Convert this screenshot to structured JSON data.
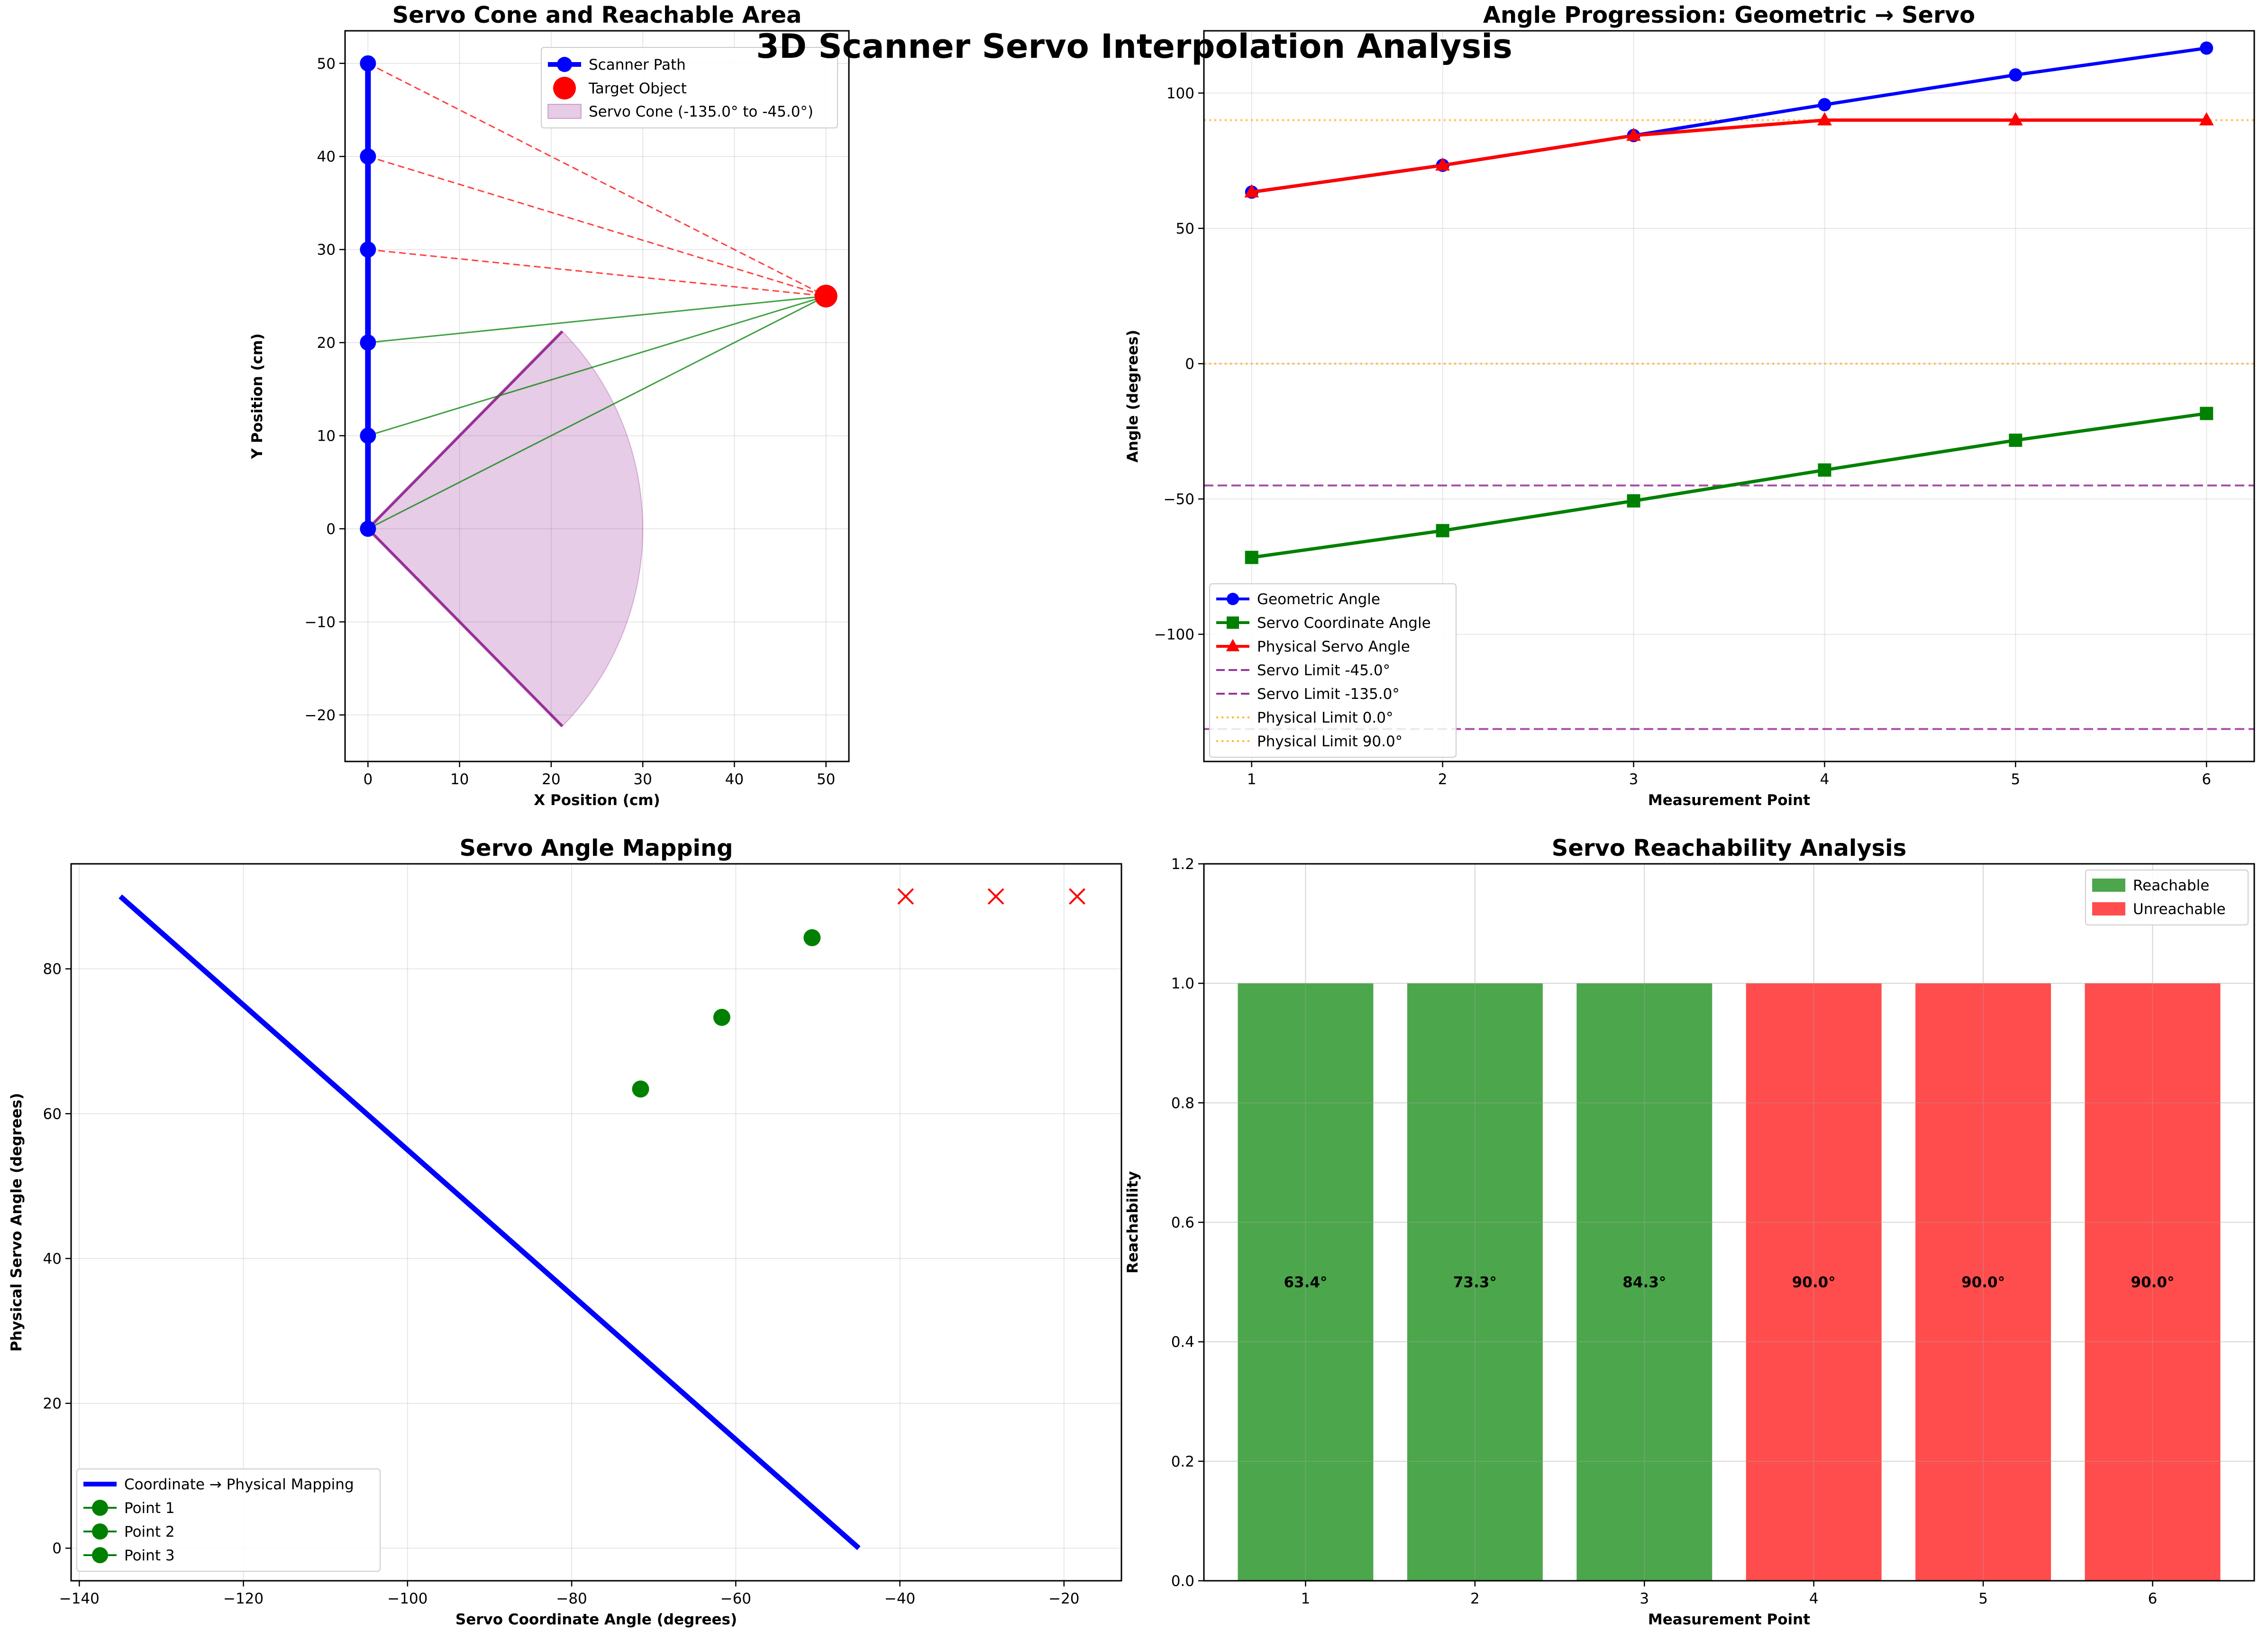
{
  "suptitle": "3D Scanner Servo Interpolation Analysis",
  "chart_data": [
    {
      "id": "p1",
      "type": "scatter",
      "title": "Servo Cone and Reachable Area",
      "xlabel": "X Position (cm)",
      "ylabel": "Y Position (cm)",
      "xlim": [
        -2.5,
        52.5
      ],
      "ylim": [
        -25,
        53.5
      ],
      "xticks": [
        0,
        10,
        20,
        30,
        40,
        50
      ],
      "yticks": [
        -20,
        -10,
        0,
        10,
        20,
        30,
        40,
        50
      ],
      "grid": true,
      "legend_loc": "upper right",
      "scanner_path": {
        "name": "Scanner Path",
        "color": "#0000ff",
        "x": [
          0,
          0,
          0,
          0,
          0,
          0
        ],
        "y": [
          0,
          10,
          20,
          30,
          40,
          50
        ]
      },
      "target": {
        "name": "Target Object",
        "color": "#ff0000",
        "x": 50,
        "y": 25
      },
      "cone": {
        "name": "Servo Cone (-135.0° to -45.0°)",
        "origin": [
          0,
          0
        ],
        "radius": 30,
        "angle_min": -45,
        "angle_max": 45,
        "color": "#800080"
      },
      "rays": [
        {
          "from": [
            0,
            0
          ],
          "to": [
            50,
            25
          ],
          "reachable": true
        },
        {
          "from": [
            0,
            10
          ],
          "to": [
            50,
            25
          ],
          "reachable": true
        },
        {
          "from": [
            0,
            20
          ],
          "to": [
            50,
            25
          ],
          "reachable": true
        },
        {
          "from": [
            0,
            30
          ],
          "to": [
            50,
            25
          ],
          "reachable": false
        },
        {
          "from": [
            0,
            40
          ],
          "to": [
            50,
            25
          ],
          "reachable": false
        },
        {
          "from": [
            0,
            50
          ],
          "to": [
            50,
            25
          ],
          "reachable": false
        }
      ]
    },
    {
      "id": "p2",
      "type": "line",
      "title": "Angle Progression: Geometric → Servo",
      "xlabel": "Measurement Point",
      "ylabel": "Angle (degrees)",
      "xlim": [
        0.75,
        6.25
      ],
      "ylim": [
        -147,
        123
      ],
      "xticks": [
        1,
        2,
        3,
        4,
        5,
        6
      ],
      "yticks": [
        -100,
        -50,
        0,
        50,
        100
      ],
      "grid": true,
      "legend_loc": "lower left",
      "x": [
        1,
        2,
        3,
        4,
        5,
        6
      ],
      "series": [
        {
          "name": "Geometric Angle",
          "color": "#0000ff",
          "marker": "circle",
          "values": [
            63.4,
            73.3,
            84.3,
            95.7,
            106.7,
            116.6
          ]
        },
        {
          "name": "Servo Coordinate Angle",
          "color": "#008000",
          "marker": "square",
          "values": [
            -71.6,
            -61.7,
            -50.7,
            -39.3,
            -28.3,
            -18.4
          ]
        },
        {
          "name": "Physical Servo Angle",
          "color": "#ff0000",
          "marker": "triangle",
          "values": [
            63.4,
            73.3,
            84.3,
            90.0,
            90.0,
            90.0
          ]
        }
      ],
      "hlines": [
        {
          "name": "Servo Limit -45.0°",
          "value": -45,
          "color": "#800080",
          "style": "dashed"
        },
        {
          "name": "Servo Limit -135.0°",
          "value": -135,
          "color": "#800080",
          "style": "dashed"
        },
        {
          "name": "Physical Limit 0.0°",
          "value": 0,
          "color": "#ffa500",
          "style": "dotted"
        },
        {
          "name": "Physical Limit 90.0°",
          "value": 90,
          "color": "#ffa500",
          "style": "dotted"
        }
      ]
    },
    {
      "id": "p3",
      "type": "scatter",
      "title": "Servo Angle Mapping",
      "xlabel": "Servo Coordinate Angle (degrees)",
      "ylabel": "Physical Servo Angle (degrees)",
      "xlim": [
        -141,
        -13
      ],
      "ylim": [
        -4.5,
        94.5
      ],
      "xticks": [
        -140,
        -120,
        -100,
        -80,
        -60,
        -40,
        -20
      ],
      "yticks": [
        0,
        20,
        40,
        60,
        80
      ],
      "grid": true,
      "legend_loc": "lower left",
      "mapping": {
        "name": "Coordinate → Physical Mapping",
        "color": "#0000ff",
        "x": [
          -135,
          -45
        ],
        "y": [
          90,
          0
        ]
      },
      "points": [
        {
          "name": "Point 1",
          "x": -71.6,
          "y": 63.4,
          "reachable": true
        },
        {
          "name": "Point 2",
          "x": -61.7,
          "y": 73.3,
          "reachable": true
        },
        {
          "name": "Point 3",
          "x": -50.7,
          "y": 84.3,
          "reachable": true
        },
        {
          "name": "",
          "x": -39.3,
          "y": 90.0,
          "reachable": false
        },
        {
          "name": "",
          "x": -28.3,
          "y": 90.0,
          "reachable": false
        },
        {
          "name": "",
          "x": -18.4,
          "y": 90.0,
          "reachable": false
        }
      ],
      "reachable_color": "#008000",
      "unreachable_color": "#ff0000"
    },
    {
      "id": "p4",
      "type": "bar",
      "title": "Servo Reachability Analysis",
      "xlabel": "Measurement Point",
      "ylabel": "Reachability",
      "xlim": [
        0.4,
        6.6
      ],
      "ylim": [
        0,
        1.2
      ],
      "xticks": [
        1,
        2,
        3,
        4,
        5,
        6
      ],
      "yticks": [
        0.0,
        0.2,
        0.4,
        0.6,
        0.8,
        1.0,
        1.2
      ],
      "grid": true,
      "legend_loc": "upper right",
      "categories": [
        1,
        2,
        3,
        4,
        5,
        6
      ],
      "values": [
        1.0,
        1.0,
        1.0,
        1.0,
        1.0,
        1.0
      ],
      "reachable": [
        true,
        true,
        true,
        false,
        false,
        false
      ],
      "labels": [
        "63.4°",
        "73.3°",
        "84.3°",
        "90.0°",
        "90.0°",
        "90.0°"
      ],
      "legend": [
        {
          "name": "Reachable",
          "color": "#4ca64c"
        },
        {
          "name": "Unreachable",
          "color": "#ff4c4c"
        }
      ]
    }
  ]
}
